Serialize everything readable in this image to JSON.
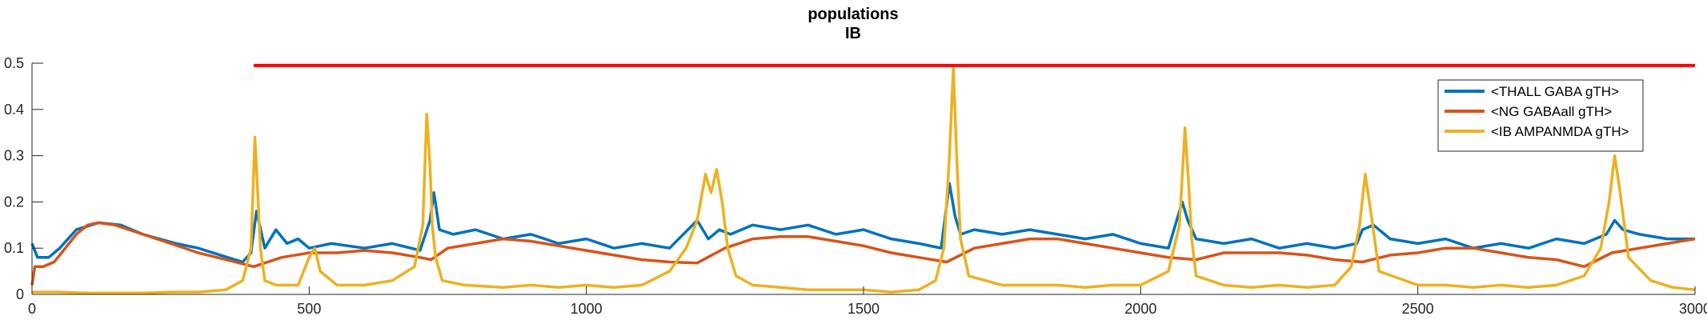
{
  "chart_data": {
    "type": "line",
    "title": "populations",
    "subtitle": "IB",
    "xlim": [
      0,
      3000
    ],
    "ylim": [
      0,
      0.5
    ],
    "xticks": [
      0,
      500,
      1000,
      1500,
      2000,
      2500,
      3000
    ],
    "xtick_labels": [
      "0",
      "500",
      "1000",
      "1500",
      "2000",
      "2500",
      "3000"
    ],
    "yticks": [
      0,
      0.1,
      0.2,
      0.3,
      0.4,
      0.5
    ],
    "ytick_labels": [
      "0",
      "0.1",
      "0.2",
      "0.3",
      "0.4",
      "0.5"
    ],
    "grid": false,
    "legend_position": "top-right",
    "series": [
      {
        "name": "<THALL GABA gTH>",
        "color": "#0072BD",
        "x": [
          0,
          10,
          30,
          50,
          80,
          120,
          160,
          200,
          260,
          300,
          340,
          380,
          395,
          405,
          420,
          440,
          460,
          480,
          500,
          540,
          600,
          650,
          700,
          718,
          725,
          735,
          760,
          800,
          850,
          900,
          950,
          1000,
          1050,
          1100,
          1150,
          1200,
          1220,
          1240,
          1260,
          1300,
          1350,
          1400,
          1450,
          1500,
          1550,
          1600,
          1640,
          1655,
          1665,
          1675,
          1700,
          1750,
          1800,
          1850,
          1900,
          1950,
          2000,
          2050,
          2075,
          2085,
          2100,
          2150,
          2200,
          2250,
          2300,
          2350,
          2390,
          2400,
          2420,
          2450,
          2500,
          2550,
          2600,
          2650,
          2700,
          2750,
          2800,
          2840,
          2855,
          2870,
          2900,
          2950,
          3000
        ],
        "values": [
          0.11,
          0.08,
          0.08,
          0.1,
          0.14,
          0.155,
          0.15,
          0.13,
          0.11,
          0.1,
          0.085,
          0.07,
          0.09,
          0.18,
          0.1,
          0.14,
          0.11,
          0.12,
          0.1,
          0.11,
          0.1,
          0.11,
          0.095,
          0.16,
          0.22,
          0.14,
          0.13,
          0.14,
          0.12,
          0.13,
          0.11,
          0.12,
          0.1,
          0.11,
          0.1,
          0.16,
          0.12,
          0.14,
          0.13,
          0.15,
          0.14,
          0.15,
          0.13,
          0.14,
          0.12,
          0.11,
          0.1,
          0.24,
          0.17,
          0.13,
          0.14,
          0.13,
          0.14,
          0.13,
          0.12,
          0.13,
          0.11,
          0.1,
          0.2,
          0.16,
          0.12,
          0.11,
          0.12,
          0.1,
          0.11,
          0.1,
          0.11,
          0.14,
          0.15,
          0.12,
          0.11,
          0.12,
          0.1,
          0.11,
          0.1,
          0.12,
          0.11,
          0.13,
          0.16,
          0.14,
          0.13,
          0.12,
          0.12
        ]
      },
      {
        "name": "<NG GABAall gTH>",
        "color": "#D95319",
        "x": [
          0,
          5,
          20,
          40,
          60,
          80,
          100,
          120,
          150,
          200,
          250,
          300,
          350,
          400,
          450,
          500,
          550,
          600,
          650,
          700,
          720,
          750,
          800,
          850,
          900,
          950,
          1000,
          1050,
          1100,
          1150,
          1200,
          1250,
          1300,
          1350,
          1400,
          1450,
          1500,
          1550,
          1600,
          1650,
          1700,
          1750,
          1800,
          1850,
          1900,
          1950,
          2000,
          2050,
          2100,
          2150,
          2200,
          2250,
          2300,
          2350,
          2400,
          2450,
          2500,
          2550,
          2600,
          2650,
          2700,
          2750,
          2800,
          2850,
          2900,
          2950,
          3000
        ],
        "values": [
          0.02,
          0.06,
          0.06,
          0.07,
          0.1,
          0.13,
          0.15,
          0.155,
          0.15,
          0.13,
          0.11,
          0.09,
          0.075,
          0.06,
          0.08,
          0.09,
          0.09,
          0.095,
          0.09,
          0.08,
          0.075,
          0.1,
          0.11,
          0.12,
          0.115,
          0.105,
          0.095,
          0.085,
          0.075,
          0.07,
          0.068,
          0.1,
          0.12,
          0.125,
          0.125,
          0.115,
          0.105,
          0.09,
          0.08,
          0.07,
          0.1,
          0.11,
          0.12,
          0.12,
          0.11,
          0.1,
          0.09,
          0.08,
          0.075,
          0.09,
          0.09,
          0.09,
          0.085,
          0.075,
          0.07,
          0.085,
          0.09,
          0.1,
          0.1,
          0.09,
          0.08,
          0.075,
          0.06,
          0.09,
          0.1,
          0.11,
          0.12
        ]
      },
      {
        "name": "<IB AMPANMDA gTH>",
        "color": "#EDB120",
        "x": [
          0,
          50,
          100,
          150,
          200,
          250,
          300,
          350,
          380,
          395,
          402,
          408,
          412,
          420,
          440,
          480,
          500,
          510,
          520,
          550,
          600,
          650,
          690,
          705,
          712,
          718,
          722,
          728,
          740,
          780,
          850,
          900,
          950,
          1000,
          1050,
          1100,
          1150,
          1180,
          1200,
          1215,
          1225,
          1235,
          1245,
          1255,
          1270,
          1300,
          1350,
          1400,
          1450,
          1500,
          1550,
          1600,
          1630,
          1645,
          1655,
          1662,
          1668,
          1675,
          1690,
          1750,
          1800,
          1850,
          1900,
          1950,
          2000,
          2050,
          2070,
          2080,
          2086,
          2092,
          2100,
          2150,
          2200,
          2250,
          2300,
          2350,
          2380,
          2395,
          2405,
          2415,
          2430,
          2500,
          2550,
          2600,
          2650,
          2700,
          2750,
          2800,
          2830,
          2845,
          2855,
          2865,
          2880,
          2920,
          2960,
          3000
        ],
        "values": [
          0.005,
          0.005,
          0.003,
          0.003,
          0.003,
          0.005,
          0.005,
          0.01,
          0.03,
          0.1,
          0.34,
          0.2,
          0.1,
          0.03,
          0.02,
          0.02,
          0.08,
          0.1,
          0.05,
          0.02,
          0.02,
          0.03,
          0.06,
          0.15,
          0.39,
          0.28,
          0.15,
          0.08,
          0.03,
          0.02,
          0.015,
          0.02,
          0.015,
          0.02,
          0.015,
          0.02,
          0.05,
          0.1,
          0.16,
          0.26,
          0.22,
          0.27,
          0.2,
          0.1,
          0.04,
          0.02,
          0.015,
          0.01,
          0.01,
          0.01,
          0.005,
          0.01,
          0.03,
          0.1,
          0.3,
          0.49,
          0.3,
          0.12,
          0.04,
          0.02,
          0.02,
          0.02,
          0.015,
          0.02,
          0.02,
          0.05,
          0.15,
          0.36,
          0.25,
          0.12,
          0.04,
          0.02,
          0.015,
          0.02,
          0.015,
          0.02,
          0.06,
          0.15,
          0.26,
          0.18,
          0.05,
          0.02,
          0.02,
          0.015,
          0.02,
          0.015,
          0.02,
          0.04,
          0.1,
          0.2,
          0.3,
          0.22,
          0.08,
          0.03,
          0.015,
          0.01
        ]
      },
      {
        "name": "",
        "color": "#FF0000",
        "x": [
          400,
          3000
        ],
        "values": [
          0.495,
          0.495
        ]
      }
    ]
  }
}
